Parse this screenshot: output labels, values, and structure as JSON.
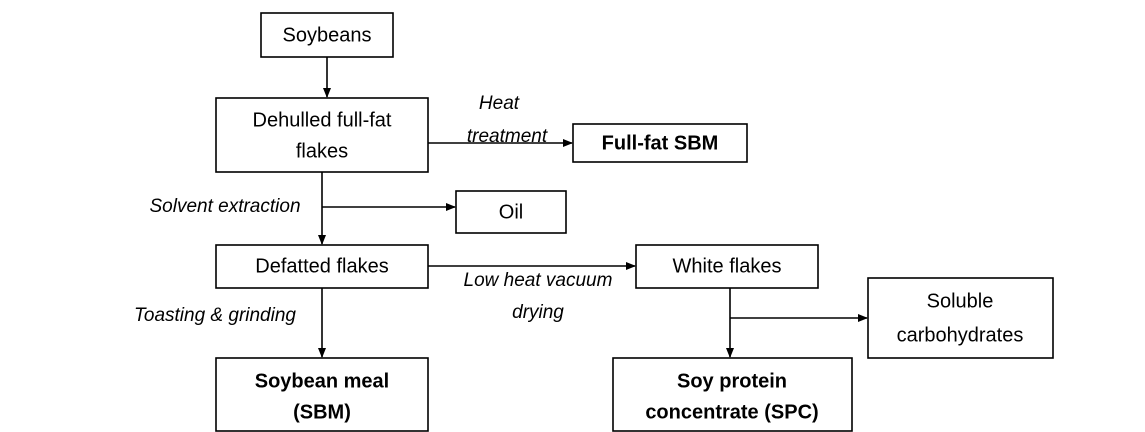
{
  "nodes": [
    {
      "lines": [
        "Soybeans"
      ]
    },
    {
      "lines": [
        "Dehulled full-fat",
        "flakes"
      ]
    },
    {
      "lines": [
        "Full-fat SBM"
      ]
    },
    {
      "lines": [
        "Oil"
      ]
    },
    {
      "lines": [
        "Defatted flakes"
      ]
    },
    {
      "lines": [
        "White flakes"
      ]
    },
    {
      "lines": [
        "Soluble",
        "carbohydrates"
      ]
    },
    {
      "lines": [
        "Soybean meal",
        "(SBM)"
      ]
    },
    {
      "lines": [
        "Soy protein",
        "concentrate (SPC)"
      ]
    }
  ],
  "edge_labels": [
    {
      "lines": [
        "Heat",
        "treatment"
      ]
    },
    {
      "lines": [
        "Solvent extraction"
      ]
    },
    {
      "lines": [
        "Low heat vacuum",
        "drying"
      ]
    },
    {
      "lines": [
        "Toasting & grinding"
      ]
    }
  ]
}
